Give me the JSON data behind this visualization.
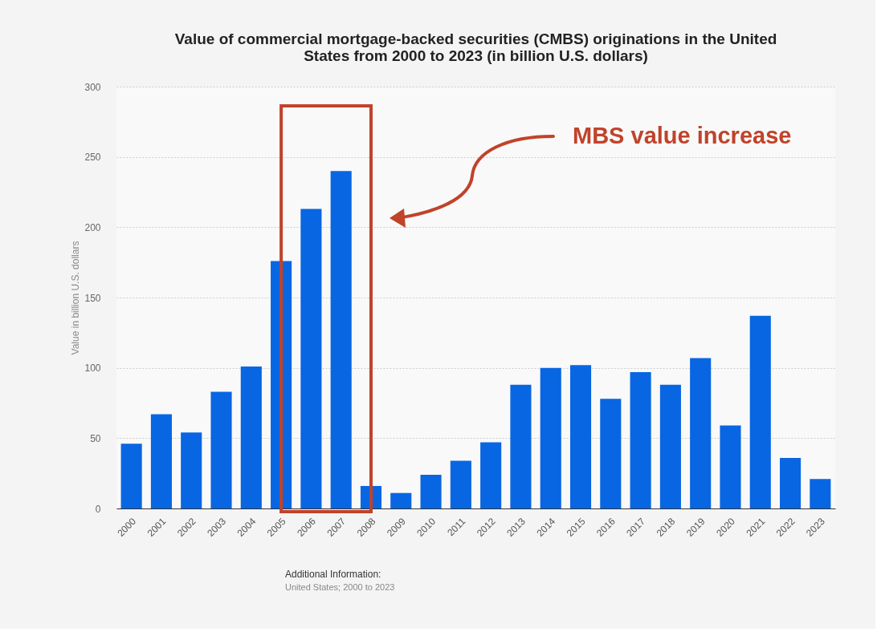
{
  "chart_data": {
    "type": "bar",
    "title": [
      "Value of commercial mortgage-backed securities (CMBS) originations in the United",
      "States from 2000 to 2023 (in billion U.S. dollars)"
    ],
    "ylabel": "Value in billion U.S. dollars",
    "categories": [
      "2000",
      "2001",
      "2002",
      "2003",
      "2004",
      "2005",
      "2006",
      "2007",
      "2008",
      "2009",
      "2010",
      "2011",
      "2012",
      "2013",
      "2014",
      "2015",
      "2016",
      "2017",
      "2018",
      "2019",
      "2020",
      "2021",
      "2022",
      "2023"
    ],
    "values": [
      46,
      67,
      54,
      83,
      101,
      176,
      213,
      240,
      16,
      11,
      24,
      34,
      47,
      88,
      100,
      102,
      78,
      97,
      88,
      107,
      59,
      137,
      36,
      21
    ],
    "color": "#0866e3",
    "ylim": [
      0,
      300
    ],
    "yticks": [
      0,
      50,
      100,
      150,
      200,
      250,
      300
    ],
    "grid": "y",
    "annotations": [
      "MBS value increase",
      "Additional Information:",
      "United States; 2000 to 2023"
    ]
  }
}
